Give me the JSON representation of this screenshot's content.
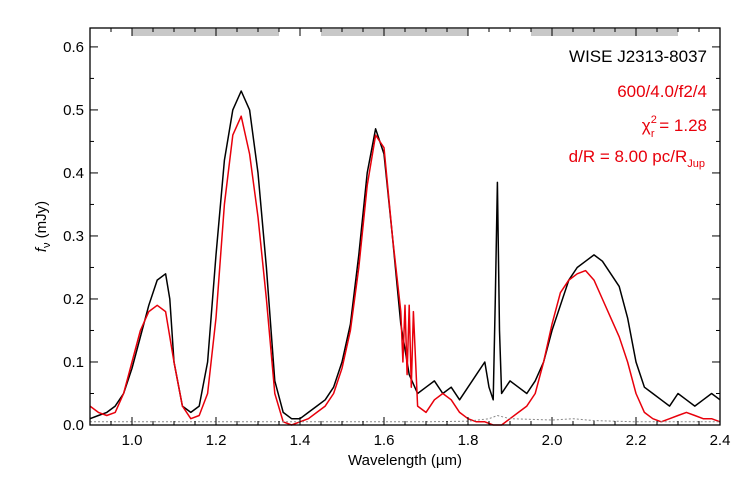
{
  "chart_data": {
    "type": "line",
    "xlabel": "Wavelength (µm)",
    "ylabel_main": "f",
    "ylabel_sub": "ν",
    "ylabel_unit": " (mJy)",
    "xlim": [
      0.9,
      2.4
    ],
    "ylim": [
      0.0,
      0.63
    ],
    "xticks": [
      "1.0",
      "1.2",
      "1.4",
      "1.6",
      "1.8",
      "2.0",
      "2.2",
      "2.4"
    ],
    "yticks": [
      "0.0",
      "0.1",
      "0.2",
      "0.3",
      "0.4",
      "0.5",
      "0.6"
    ],
    "annotations": {
      "object": "WISE J2313-8037",
      "model": "600/4.0/f2/4",
      "chi_main": "χ",
      "chi_sup": "2",
      "chi_sub": "r",
      "chi_rest": " = 1.28",
      "dist_main": "d/R = 8.00 pc/R",
      "dist_sub": "Jup"
    },
    "bands": [
      [
        1.0,
        1.35
      ],
      [
        1.45,
        1.8
      ],
      [
        1.95,
        2.3
      ]
    ],
    "series": [
      {
        "color": "#000000",
        "x": [
          0.9,
          0.92,
          0.94,
          0.96,
          0.98,
          1.0,
          1.02,
          1.04,
          1.06,
          1.08,
          1.09,
          1.1,
          1.12,
          1.14,
          1.16,
          1.18,
          1.2,
          1.22,
          1.24,
          1.26,
          1.28,
          1.3,
          1.32,
          1.34,
          1.36,
          1.38,
          1.4,
          1.42,
          1.44,
          1.46,
          1.48,
          1.5,
          1.52,
          1.54,
          1.56,
          1.58,
          1.6,
          1.62,
          1.64,
          1.66,
          1.68,
          1.7,
          1.72,
          1.74,
          1.76,
          1.78,
          1.8,
          1.82,
          1.84,
          1.85,
          1.86,
          1.865,
          1.87,
          1.875,
          1.88,
          1.9,
          1.92,
          1.94,
          1.96,
          1.98,
          2.0,
          2.02,
          2.04,
          2.06,
          2.08,
          2.1,
          2.12,
          2.14,
          2.16,
          2.18,
          2.2,
          2.22,
          2.24,
          2.26,
          2.28,
          2.3,
          2.32,
          2.34,
          2.36,
          2.38,
          2.4
        ],
        "y": [
          0.01,
          0.015,
          0.02,
          0.03,
          0.05,
          0.09,
          0.14,
          0.19,
          0.23,
          0.24,
          0.2,
          0.1,
          0.03,
          0.02,
          0.03,
          0.1,
          0.27,
          0.42,
          0.5,
          0.53,
          0.5,
          0.4,
          0.25,
          0.07,
          0.02,
          0.01,
          0.01,
          0.02,
          0.03,
          0.04,
          0.06,
          0.1,
          0.16,
          0.27,
          0.4,
          0.47,
          0.43,
          0.3,
          0.16,
          0.08,
          0.05,
          0.06,
          0.07,
          0.05,
          0.06,
          0.04,
          0.06,
          0.08,
          0.1,
          0.06,
          0.04,
          0.2,
          0.385,
          0.15,
          0.05,
          0.07,
          0.06,
          0.05,
          0.07,
          0.1,
          0.15,
          0.19,
          0.23,
          0.25,
          0.26,
          0.27,
          0.26,
          0.24,
          0.22,
          0.17,
          0.1,
          0.06,
          0.05,
          0.04,
          0.03,
          0.05,
          0.04,
          0.03,
          0.04,
          0.05,
          0.04
        ]
      },
      {
        "color": "#e8000b",
        "x": [
          0.9,
          0.92,
          0.94,
          0.96,
          0.98,
          1.0,
          1.02,
          1.04,
          1.06,
          1.08,
          1.1,
          1.12,
          1.14,
          1.16,
          1.18,
          1.2,
          1.22,
          1.24,
          1.26,
          1.28,
          1.3,
          1.32,
          1.34,
          1.36,
          1.38,
          1.4,
          1.42,
          1.44,
          1.46,
          1.48,
          1.5,
          1.52,
          1.54,
          1.56,
          1.58,
          1.6,
          1.62,
          1.64,
          1.645,
          1.65,
          1.655,
          1.66,
          1.665,
          1.67,
          1.68,
          1.7,
          1.72,
          1.74,
          1.76,
          1.78,
          1.8,
          1.82,
          1.84,
          1.86,
          1.88,
          1.9,
          1.92,
          1.94,
          1.96,
          1.98,
          2.0,
          2.02,
          2.04,
          2.06,
          2.08,
          2.1,
          2.12,
          2.14,
          2.16,
          2.18,
          2.2,
          2.22,
          2.24,
          2.26,
          2.28,
          2.3,
          2.32,
          2.34,
          2.36,
          2.38,
          2.4
        ],
        "y": [
          0.03,
          0.02,
          0.015,
          0.02,
          0.05,
          0.1,
          0.15,
          0.18,
          0.19,
          0.18,
          0.1,
          0.03,
          0.01,
          0.015,
          0.05,
          0.17,
          0.35,
          0.46,
          0.49,
          0.43,
          0.33,
          0.2,
          0.05,
          0.005,
          0.0,
          0.005,
          0.01,
          0.02,
          0.03,
          0.05,
          0.09,
          0.15,
          0.25,
          0.38,
          0.46,
          0.44,
          0.3,
          0.18,
          0.1,
          0.19,
          0.08,
          0.19,
          0.06,
          0.18,
          0.03,
          0.02,
          0.04,
          0.05,
          0.04,
          0.02,
          0.01,
          0.005,
          0.005,
          0.0,
          0.0,
          0.01,
          0.02,
          0.03,
          0.05,
          0.1,
          0.16,
          0.21,
          0.23,
          0.24,
          0.245,
          0.23,
          0.2,
          0.17,
          0.14,
          0.1,
          0.05,
          0.02,
          0.01,
          0.005,
          0.01,
          0.015,
          0.02,
          0.015,
          0.01,
          0.01,
          0.005
        ]
      },
      {
        "color": "#888888",
        "x": [
          0.9,
          1.0,
          1.1,
          1.2,
          1.3,
          1.4,
          1.5,
          1.6,
          1.7,
          1.8,
          1.85,
          1.87,
          1.9,
          2.0,
          2.05,
          2.1,
          2.2,
          2.3,
          2.4
        ],
        "y": [
          0.005,
          0.005,
          0.005,
          0.005,
          0.005,
          0.005,
          0.005,
          0.005,
          0.005,
          0.006,
          0.01,
          0.015,
          0.01,
          0.008,
          0.01,
          0.007,
          0.005,
          0.005,
          0.005
        ]
      }
    ]
  }
}
